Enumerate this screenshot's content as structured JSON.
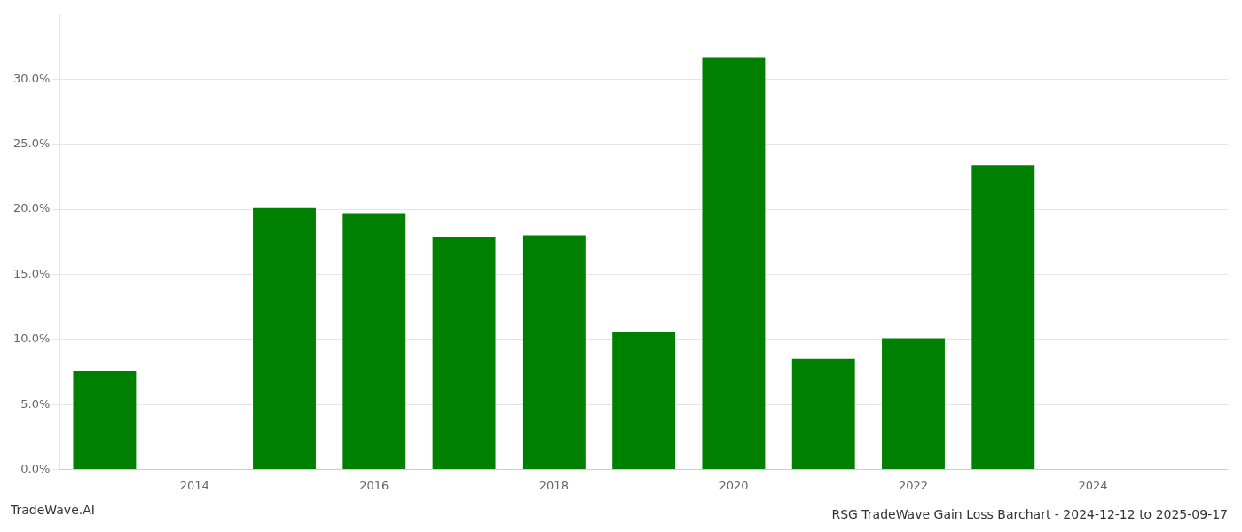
{
  "chart_data": {
    "type": "bar",
    "title": "RSG TradeWave Gain Loss Barchart - 2024-12-12 to 2025-09-17",
    "annotations": [
      "TradeWave.AI"
    ],
    "x": [
      2013,
      2015,
      2016,
      2017,
      2018,
      2019,
      2020,
      2021,
      2022,
      2023
    ],
    "values": [
      0.076,
      0.201,
      0.197,
      0.179,
      0.18,
      0.106,
      0.317,
      0.085,
      0.101,
      0.234
    ],
    "color": "#008000",
    "xlim": [
      2012.5,
      2025.5
    ],
    "xticks": [
      2014,
      2016,
      2018,
      2020,
      2022,
      2024
    ],
    "ylim": [
      0,
      0.35
    ],
    "yticks": [
      {
        "value": 0.0,
        "label": "0.0%"
      },
      {
        "value": 0.05,
        "label": "5.0%"
      },
      {
        "value": 0.1,
        "label": "10.0%"
      },
      {
        "value": 0.15,
        "label": "15.0%"
      },
      {
        "value": 0.2,
        "label": "20.0%"
      },
      {
        "value": 0.25,
        "label": "25.0%"
      },
      {
        "value": 0.3,
        "label": "30.0%"
      }
    ],
    "grid": true
  }
}
